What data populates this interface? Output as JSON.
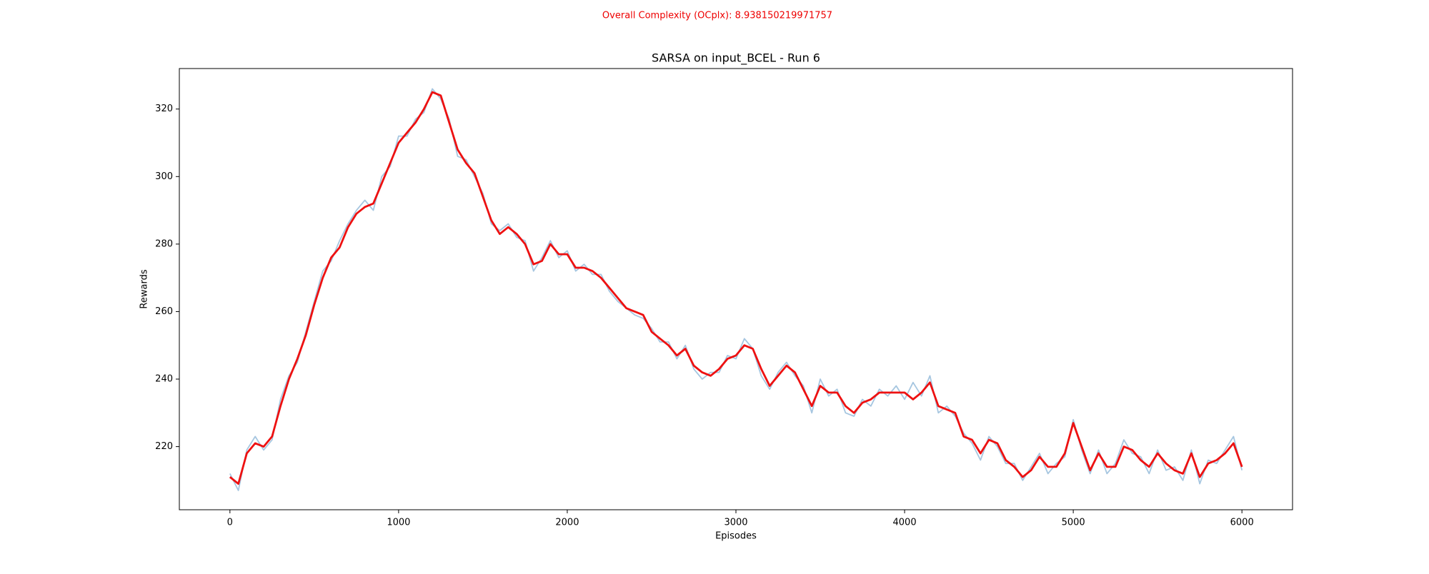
{
  "chart_data": {
    "type": "line",
    "suptitle": "Overall Complexity (OCplx): 8.938150219971757",
    "title": "SARSA on input_BCEL - Run 6",
    "xlabel": "Episodes",
    "ylabel": "Rewards",
    "x": [
      0,
      50,
      100,
      150,
      200,
      250,
      300,
      350,
      400,
      450,
      500,
      550,
      600,
      650,
      700,
      750,
      800,
      850,
      900,
      950,
      1000,
      1050,
      1100,
      1150,
      1200,
      1250,
      1300,
      1350,
      1400,
      1450,
      1500,
      1550,
      1600,
      1650,
      1700,
      1750,
      1800,
      1850,
      1900,
      1950,
      2000,
      2050,
      2100,
      2150,
      2200,
      2250,
      2300,
      2350,
      2400,
      2450,
      2500,
      2550,
      2600,
      2650,
      2700,
      2750,
      2800,
      2850,
      2900,
      2950,
      3000,
      3050,
      3100,
      3150,
      3200,
      3250,
      3300,
      3350,
      3400,
      3450,
      3500,
      3550,
      3600,
      3650,
      3700,
      3750,
      3800,
      3850,
      3900,
      3950,
      4000,
      4050,
      4100,
      4150,
      4200,
      4250,
      4300,
      4350,
      4400,
      4450,
      4500,
      4550,
      4600,
      4650,
      4700,
      4750,
      4800,
      4850,
      4900,
      4950,
      5000,
      5050,
      5100,
      5150,
      5200,
      5250,
      5300,
      5350,
      5400,
      5450,
      5500,
      5550,
      5600,
      5650,
      5700,
      5750,
      5800,
      5850,
      5900,
      5950,
      6000
    ],
    "series": [
      {
        "name": "raw",
        "color": "#a6c6e0",
        "values": [
          212,
          207,
          219,
          223,
          219,
          222,
          234,
          241,
          245,
          254,
          263,
          272,
          275,
          281,
          286,
          290,
          293,
          290,
          300,
          303,
          312,
          312,
          317,
          319,
          326,
          323,
          317,
          306,
          305,
          300,
          295,
          286,
          284,
          286,
          282,
          281,
          272,
          276,
          281,
          276,
          278,
          272,
          274,
          271,
          271,
          266,
          263,
          261,
          259,
          258,
          255,
          251,
          251,
          246,
          250,
          243,
          240,
          242,
          242,
          247,
          246,
          252,
          249,
          241,
          237,
          242,
          245,
          241,
          238,
          230,
          240,
          235,
          237,
          230,
          229,
          234,
          232,
          237,
          235,
          238,
          234,
          239,
          235,
          241,
          230,
          232,
          229,
          224,
          221,
          216,
          223,
          220,
          215,
          215,
          210,
          214,
          218,
          212,
          215,
          217,
          228,
          219,
          212,
          219,
          212,
          215,
          222,
          218,
          217,
          212,
          219,
          213,
          214,
          210,
          219,
          209,
          216,
          215,
          219,
          223,
          213
        ]
      },
      {
        "name": "smoothed",
        "color": "#ee1111",
        "values": [
          211,
          209,
          218,
          221,
          220,
          223,
          232,
          240,
          246,
          253,
          262,
          270,
          276,
          279,
          285,
          289,
          291,
          292,
          298,
          304,
          310,
          313,
          316,
          320,
          325,
          324,
          316,
          308,
          304,
          301,
          294,
          287,
          283,
          285,
          283,
          280,
          274,
          275,
          280,
          277,
          277,
          273,
          273,
          272,
          270,
          267,
          264,
          261,
          260,
          259,
          254,
          252,
          250,
          247,
          249,
          244,
          242,
          241,
          243,
          246,
          247,
          250,
          249,
          243,
          238,
          241,
          244,
          242,
          237,
          232,
          238,
          236,
          236,
          232,
          230,
          233,
          234,
          236,
          236,
          236,
          236,
          234,
          236,
          239,
          232,
          231,
          230,
          223,
          222,
          218,
          222,
          221,
          216,
          214,
          211,
          213,
          217,
          214,
          214,
          218,
          227,
          220,
          213,
          218,
          214,
          214,
          220,
          219,
          216,
          214,
          218,
          215,
          213,
          212,
          218,
          211,
          215,
          216,
          218,
          221,
          214
        ]
      }
    ],
    "xlim": [
      -300,
      6300
    ],
    "xticks": [
      0,
      1000,
      2000,
      3000,
      4000,
      5000,
      6000
    ],
    "ylim": [
      201.3,
      332
    ],
    "yticks": [
      220,
      240,
      260,
      280,
      300,
      320
    ]
  }
}
